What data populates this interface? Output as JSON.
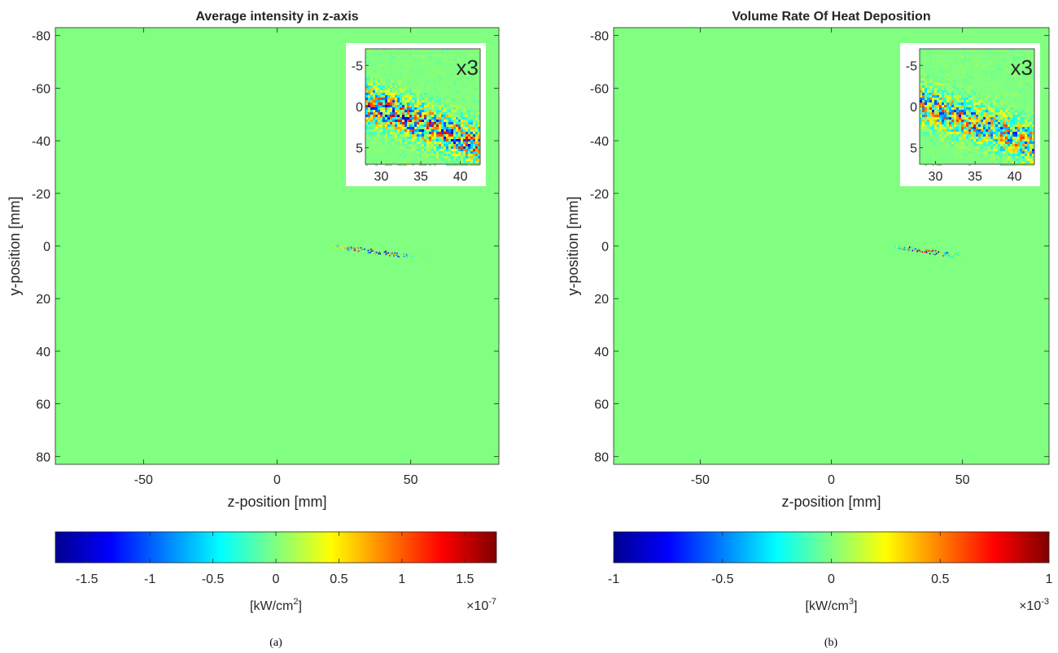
{
  "chart_data": [
    {
      "type": "heatmap",
      "title": "Average intensity in z-axis",
      "xlabel": "z-position [mm]",
      "ylabel": "y-position [mm]",
      "xlim": [
        -83,
        83
      ],
      "ylim": [
        -83,
        83
      ],
      "y_reversed": true,
      "xticks": [
        -50,
        0,
        50
      ],
      "yticks": [
        -80,
        -60,
        -40,
        -20,
        0,
        20,
        40,
        60,
        80
      ],
      "colormap": "jet",
      "background_color": "#80ff80",
      "feature": {
        "z_start": 18,
        "z_end": 56,
        "y_start": -0.5,
        "y_end": 4.5
      },
      "inset": {
        "magnification_label": "x3",
        "xlim": [
          28,
          42.5
        ],
        "ylim": [
          -7,
          7
        ],
        "xticks": [
          30,
          35,
          40
        ],
        "yticks": [
          -5,
          0,
          5
        ]
      },
      "colorbar": {
        "limits": [
          -1.75,
          1.75
        ],
        "ticks": [
          -1.5,
          -1,
          -0.5,
          0,
          0.5,
          1,
          1.5
        ],
        "tick_labels": [
          "-1.5",
          "-1",
          "-0.5",
          "0",
          "0.5",
          "1",
          "1.5"
        ],
        "label_main": "[kW/cm",
        "label_sup": "2",
        "label_end": "]",
        "exponent_base": "×10",
        "exponent_value": "-7"
      },
      "panel_label": "(a)"
    },
    {
      "type": "heatmap",
      "title": "Volume Rate Of Heat Deposition",
      "xlabel": "z-position [mm]",
      "ylabel": "y-position [mm]",
      "xlim": [
        -83,
        83
      ],
      "ylim": [
        -83,
        83
      ],
      "y_reversed": true,
      "xticks": [
        -50,
        0,
        50
      ],
      "yticks": [
        -80,
        -60,
        -40,
        -20,
        0,
        20,
        40,
        60,
        80
      ],
      "colormap": "jet",
      "background_color": "#80ff80",
      "feature": {
        "z_start": 22,
        "z_end": 50,
        "y_start": -0.5,
        "y_end": 4
      },
      "inset": {
        "magnification_label": "x3",
        "xlim": [
          28,
          42.5
        ],
        "ylim": [
          -7,
          7
        ],
        "xticks": [
          30,
          35,
          40
        ],
        "yticks": [
          -5,
          0,
          5
        ]
      },
      "colorbar": {
        "limits": [
          -1,
          1
        ],
        "ticks": [
          -1,
          -0.5,
          0,
          0.5,
          1
        ],
        "tick_labels": [
          "-1",
          "-0.5",
          "0",
          "0.5",
          "1"
        ],
        "label_main": "[kW/cm",
        "label_sup": "3",
        "label_end": "]",
        "exponent_base": "×10",
        "exponent_value": "-3"
      },
      "panel_label": "(b)"
    }
  ]
}
